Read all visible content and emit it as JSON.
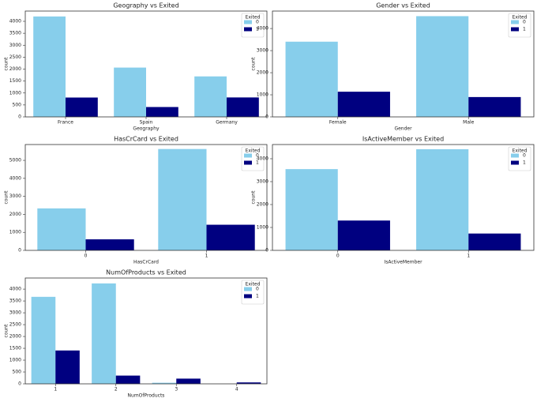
{
  "chart_data": [
    {
      "type": "bar",
      "title": "Geography vs Exited",
      "x_label": "Geography",
      "y_label": "count",
      "categories": [
        "France",
        "Spain",
        "Germany"
      ],
      "series": [
        {
          "name": "0",
          "color": "#87ceeb",
          "values": [
            4204,
            2064,
            1695
          ]
        },
        {
          "name": "1",
          "color": "#000080",
          "values": [
            810,
            413,
            814
          ]
        }
      ],
      "legend_title": "Exited",
      "legend": "upper right",
      "ylim": [
        0,
        4430
      ],
      "yticks": [
        0,
        500,
        1000,
        1500,
        2000,
        2500,
        3000,
        3500,
        4000
      ]
    },
    {
      "type": "bar",
      "title": "Gender vs Exited",
      "x_label": "Gender",
      "y_label": "count",
      "categories": [
        "Female",
        "Male"
      ],
      "series": [
        {
          "name": "0",
          "color": "#87ceeb",
          "values": [
            3404,
            4559
          ]
        },
        {
          "name": "1",
          "color": "#000080",
          "values": [
            1139,
            898
          ]
        }
      ],
      "legend_title": "Exited",
      "legend": "upper right",
      "ylim": [
        0,
        4790
      ],
      "yticks": [
        0,
        1000,
        2000,
        3000,
        4000
      ]
    },
    {
      "type": "bar",
      "title": "HasCrCard vs Exited",
      "x_label": "HasCrCard",
      "y_label": "count",
      "categories": [
        "0",
        "1"
      ],
      "series": [
        {
          "name": "0",
          "color": "#87ceeb",
          "values": [
            2332,
            5631
          ]
        },
        {
          "name": "1",
          "color": "#000080",
          "values": [
            613,
            1424
          ]
        }
      ],
      "legend_title": "Exited",
      "legend": "upper right",
      "ylim": [
        0,
        5880
      ],
      "yticks": [
        0,
        1000,
        2000,
        3000,
        4000,
        5000
      ]
    },
    {
      "type": "bar",
      "title": "IsActiveMember vs Exited",
      "x_label": "IsActiveMember",
      "y_label": "count",
      "categories": [
        "0",
        "1"
      ],
      "series": [
        {
          "name": "0",
          "color": "#87ceeb",
          "values": [
            3547,
            4416
          ]
        },
        {
          "name": "1",
          "color": "#000080",
          "values": [
            1302,
            735
          ]
        }
      ],
      "legend_title": "Exited",
      "legend": "upper right",
      "ylim": [
        0,
        4620
      ],
      "yticks": [
        0,
        1000,
        2000,
        3000,
        4000
      ]
    },
    {
      "type": "bar",
      "title": "NumOfProducts vs Exited",
      "x_label": "NumOfProducts",
      "y_label": "count",
      "categories": [
        "1",
        "2",
        "3",
        "4"
      ],
      "series": [
        {
          "name": "0",
          "color": "#87ceeb",
          "values": [
            3675,
            4242,
            46,
            0
          ]
        },
        {
          "name": "1",
          "color": "#000080",
          "values": [
            1409,
            348,
            220,
            60
          ]
        }
      ],
      "legend_title": "Exited",
      "legend": "upper right",
      "ylim": [
        0,
        4470
      ],
      "yticks": [
        0,
        500,
        1000,
        1500,
        2000,
        2500,
        3000,
        3500,
        4000
      ]
    }
  ]
}
